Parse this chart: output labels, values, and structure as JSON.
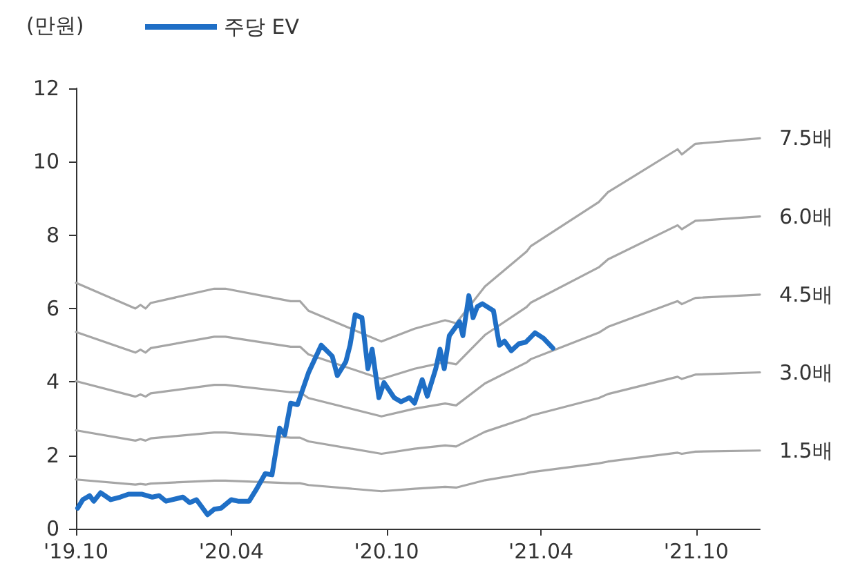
{
  "chart_data": {
    "type": "line",
    "ylabel": "(만원)",
    "legend": "top left",
    "marker": "none",
    "xlim": [
      "2019-10-01",
      "2021-12-15"
    ],
    "xticks": [
      {
        "value": "2019-10-01",
        "label": "'19.10"
      },
      {
        "value": "2020-04-01",
        "label": "'20.04"
      },
      {
        "value": "2020-10-01",
        "label": "'20.10"
      },
      {
        "value": "2021-04-01",
        "label": "'21.04"
      },
      {
        "value": "2021-10-01",
        "label": "'21.10"
      }
    ],
    "ylim": [
      0,
      12
    ],
    "yticks": [
      0,
      2,
      4,
      6,
      8,
      10,
      12
    ],
    "series": [
      {
        "name": "주당 EV",
        "color": "#1f6fc6",
        "x": [
          "2019-10-03",
          "2019-10-09",
          "2019-10-17",
          "2019-10-22",
          "2019-10-30",
          "2019-11-11",
          "2019-11-22",
          "2019-12-02",
          "2019-12-18",
          "2019-12-30",
          "2020-01-07",
          "2020-01-15",
          "2020-02-04",
          "2020-02-12",
          "2020-02-20",
          "2020-03-04",
          "2020-03-12",
          "2020-03-20",
          "2020-04-01",
          "2020-04-09",
          "2020-04-22",
          "2020-04-30",
          "2020-05-11",
          "2020-05-19",
          "2020-05-28",
          "2020-06-03",
          "2020-06-10",
          "2020-06-18",
          "2020-07-01",
          "2020-07-16",
          "2020-07-29",
          "2020-08-04",
          "2020-08-14",
          "2020-08-19",
          "2020-08-25",
          "2020-09-02",
          "2020-09-09",
          "2020-09-14",
          "2020-09-22",
          "2020-09-28",
          "2020-10-10",
          "2020-10-18",
          "2020-10-28",
          "2020-11-03",
          "2020-11-12",
          "2020-11-18",
          "2020-11-28",
          "2020-12-03",
          "2020-12-08",
          "2020-12-14",
          "2020-12-26",
          "2020-12-30",
          "2021-01-06",
          "2021-01-11",
          "2021-01-16",
          "2021-01-22",
          "2021-02-04",
          "2021-02-11",
          "2021-02-17",
          "2021-02-25",
          "2021-03-06",
          "2021-03-14",
          "2021-03-25",
          "2021-04-04",
          "2021-04-15"
        ],
        "values": [
          0.56,
          0.79,
          0.9,
          0.75,
          0.98,
          0.79,
          0.86,
          0.94,
          0.94,
          0.86,
          0.9,
          0.75,
          0.86,
          0.71,
          0.79,
          0.38,
          0.53,
          0.56,
          0.79,
          0.75,
          0.75,
          1.05,
          1.5,
          1.47,
          2.74,
          2.56,
          3.42,
          3.38,
          4.25,
          5.0,
          4.7,
          4.17,
          4.55,
          5.0,
          5.83,
          5.75,
          4.36,
          4.89,
          3.57,
          3.98,
          3.57,
          3.46,
          3.57,
          3.42,
          4.06,
          3.61,
          4.36,
          4.89,
          4.36,
          5.26,
          5.64,
          5.26,
          6.35,
          5.75,
          6.05,
          6.13,
          5.94,
          5.0,
          5.11,
          4.85,
          5.04,
          5.08,
          5.34,
          5.19,
          4.92
        ]
      },
      {
        "name": "7.5배",
        "color": "#a6a6a6",
        "x": [
          "2019-10-01",
          "2019-12-10",
          "2019-12-16",
          "2019-12-22",
          "2019-12-28",
          "2020-03-12",
          "2020-03-25",
          "2020-06-10",
          "2020-06-21",
          "2020-07-01",
          "2020-09-25",
          "2020-11-03",
          "2020-12-09",
          "2020-12-22",
          "2021-01-25",
          "2021-03-15",
          "2021-03-20",
          "2021-06-08",
          "2021-06-19",
          "2021-09-09",
          "2021-09-14",
          "2021-09-30",
          "2021-12-15"
        ],
        "values": [
          6.7,
          6.0,
          6.1,
          6.0,
          6.15,
          6.54,
          6.54,
          6.2,
          6.2,
          5.94,
          5.1,
          5.45,
          5.68,
          5.6,
          6.6,
          7.55,
          7.7,
          8.9,
          9.17,
          10.34,
          10.2,
          10.49,
          10.64
        ]
      },
      {
        "name": "6.0배",
        "color": "#a6a6a6",
        "x": [
          "2019-10-01",
          "2019-12-10",
          "2019-12-16",
          "2019-12-22",
          "2019-12-28",
          "2020-03-12",
          "2020-03-25",
          "2020-06-10",
          "2020-06-21",
          "2020-07-01",
          "2020-09-25",
          "2020-11-03",
          "2020-12-09",
          "2020-12-22",
          "2021-01-25",
          "2021-03-15",
          "2021-03-20",
          "2021-06-08",
          "2021-06-19",
          "2021-09-09",
          "2021-09-14",
          "2021-09-30",
          "2021-12-15"
        ],
        "values": [
          5.36,
          4.8,
          4.88,
          4.8,
          4.92,
          5.23,
          5.23,
          4.96,
          4.96,
          4.75,
          4.08,
          4.36,
          4.54,
          4.48,
          5.28,
          6.04,
          6.16,
          7.12,
          7.34,
          8.27,
          8.16,
          8.39,
          8.51
        ]
      },
      {
        "name": "4.5배",
        "color": "#a6a6a6",
        "x": [
          "2019-10-01",
          "2019-12-10",
          "2019-12-16",
          "2019-12-22",
          "2019-12-28",
          "2020-03-12",
          "2020-03-25",
          "2020-06-10",
          "2020-06-21",
          "2020-07-01",
          "2020-09-25",
          "2020-11-03",
          "2020-12-09",
          "2020-12-22",
          "2021-01-25",
          "2021-03-15",
          "2021-03-20",
          "2021-06-08",
          "2021-06-19",
          "2021-09-09",
          "2021-09-14",
          "2021-09-30",
          "2021-12-15"
        ],
        "values": [
          4.02,
          3.6,
          3.66,
          3.6,
          3.69,
          3.92,
          3.92,
          3.72,
          3.72,
          3.56,
          3.06,
          3.27,
          3.41,
          3.36,
          3.96,
          4.53,
          4.62,
          5.34,
          5.5,
          6.2,
          6.12,
          6.29,
          6.38
        ]
      },
      {
        "name": "3.0배",
        "color": "#a6a6a6",
        "x": [
          "2019-10-01",
          "2019-12-10",
          "2019-12-16",
          "2019-12-22",
          "2019-12-28",
          "2020-03-12",
          "2020-03-25",
          "2020-06-10",
          "2020-06-21",
          "2020-07-01",
          "2020-09-25",
          "2020-11-03",
          "2020-12-09",
          "2020-12-22",
          "2021-01-25",
          "2021-03-15",
          "2021-03-20",
          "2021-06-08",
          "2021-06-19",
          "2021-09-09",
          "2021-09-14",
          "2021-09-30",
          "2021-12-15"
        ],
        "values": [
          2.68,
          2.4,
          2.44,
          2.4,
          2.46,
          2.62,
          2.62,
          2.48,
          2.48,
          2.38,
          2.04,
          2.18,
          2.27,
          2.24,
          2.64,
          3.02,
          3.08,
          3.56,
          3.67,
          4.14,
          4.08,
          4.2,
          4.26
        ]
      },
      {
        "name": "1.5배",
        "color": "#a6a6a6",
        "x": [
          "2019-10-01",
          "2019-12-10",
          "2019-12-16",
          "2019-12-22",
          "2019-12-28",
          "2020-03-12",
          "2020-03-25",
          "2020-06-10",
          "2020-06-21",
          "2020-07-01",
          "2020-09-25",
          "2020-11-03",
          "2020-12-09",
          "2020-12-22",
          "2021-01-25",
          "2021-03-15",
          "2021-03-20",
          "2021-06-08",
          "2021-06-19",
          "2021-09-09",
          "2021-09-14",
          "2021-09-30",
          "2021-12-15"
        ],
        "values": [
          1.34,
          1.2,
          1.22,
          1.2,
          1.23,
          1.31,
          1.31,
          1.24,
          1.24,
          1.19,
          1.02,
          1.09,
          1.14,
          1.12,
          1.32,
          1.51,
          1.54,
          1.78,
          1.83,
          2.07,
          2.04,
          2.1,
          2.13
        ]
      }
    ]
  }
}
